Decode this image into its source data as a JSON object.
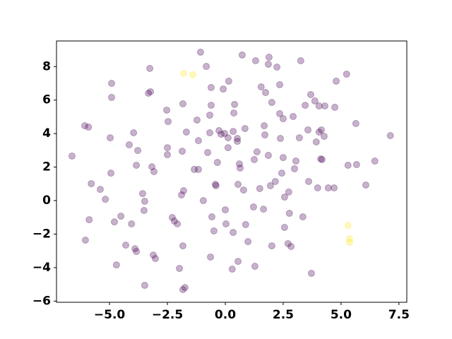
{
  "chart_data": {
    "type": "scatter",
    "alpha": 0.3,
    "xlim": [
      -7.29,
      7.84
    ],
    "ylim": [
      -6.07,
      9.53
    ],
    "xticks": [
      {
        "value": -5,
        "label": "−5.0"
      },
      {
        "value": -2.5,
        "label": "−2.5"
      },
      {
        "value": 0,
        "label": "0.0"
      },
      {
        "value": 2.5,
        "label": "2.5"
      },
      {
        "value": 5,
        "label": "5.0"
      },
      {
        "value": 7.5,
        "label": "7.5"
      }
    ],
    "yticks": [
      {
        "value": -6,
        "label": "−6"
      },
      {
        "value": -4,
        "label": "−4"
      },
      {
        "value": -2,
        "label": "−2"
      },
      0,
      2,
      4,
      6,
      8
    ],
    "series": [
      {
        "color": "#440154",
        "x": [
          -6.62,
          -6.07,
          -5.91,
          -5.79,
          -6.04,
          -5.88,
          -5.4,
          -5.18,
          -4.91,
          -4.91,
          -4.97,
          -4.94,
          -4.79,
          -4.7,
          -4.51,
          -4.3,
          -4.15,
          -4.05,
          -3.96,
          -3.78,
          -3.84,
          -3.9,
          -3.84,
          -3.57,
          -3.48,
          -3.51,
          -3.48,
          -3.32,
          -3.23,
          -3.26,
          -3.17,
          -3.08,
          -3.11,
          -3.02,
          -2.53,
          -2.47,
          -2.5,
          -2.5,
          -2.29,
          -2.2,
          -2.07,
          -1.98,
          -1.86,
          -1.83,
          -1.83,
          -1.83,
          -1.74,
          -1.8,
          -1.89,
          -1.68,
          -1.34,
          -1.16,
          -1.22,
          -1.16,
          -1.07,
          -0.95,
          -0.82,
          -0.76,
          -0.67,
          -0.67,
          -0.61,
          -0.61,
          -0.58,
          -0.49,
          -0.64,
          -0.43,
          -0.4,
          -0.34,
          -0.27,
          -0.18,
          -0.09,
          -0.03,
          0.0,
          0.03,
          0.12,
          0.12,
          0.15,
          0.34,
          0.37,
          0.34,
          0.3,
          0.4,
          0.52,
          0.52,
          0.55,
          0.55,
          0.61,
          0.64,
          0.73,
          0.79,
          0.85,
          0.88,
          0.98,
          1.25,
          1.22,
          1.31,
          1.28,
          1.37,
          1.49,
          1.55,
          1.65,
          1.68,
          1.71,
          1.74,
          1.86,
          1.86,
          1.89,
          1.95,
          2.01,
          2.01,
          2.16,
          2.23,
          2.35,
          2.38,
          2.35,
          2.44,
          2.5,
          2.56,
          2.56,
          2.74,
          2.77,
          2.71,
          2.84,
          2.5,
          2.93,
          2.99,
          3.05,
          3.26,
          3.2,
          3.35,
          3.45,
          3.57,
          3.6,
          3.69,
          3.72,
          3.87,
          3.93,
          3.99,
          4.05,
          4.05,
          4.15,
          4.27,
          4.12,
          4.18,
          4.3,
          4.45,
          4.7,
          4.73,
          4.79,
          5.24,
          5.3,
          5.67,
          5.64,
          6.07,
          6.46,
          7.13
        ],
        "y": [
          2.66,
          4.47,
          4.39,
          1.01,
          -2.36,
          -1.14,
          0.67,
          0.08,
          7.0,
          6.16,
          3.75,
          1.64,
          -1.27,
          -3.84,
          -0.93,
          -2.66,
          3.33,
          -1.39,
          4.05,
          2.99,
          2.11,
          -2.87,
          -3.04,
          0.42,
          -0.04,
          -0.59,
          -5.06,
          6.41,
          6.5,
          7.89,
          2.02,
          1.73,
          -3.25,
          -3.46,
          5.4,
          4.72,
          3.16,
          2.74,
          -1.01,
          -1.22,
          -1.39,
          -4.05,
          2.95,
          5.78,
          -2.7,
          -5.31,
          -5.19,
          0.59,
          0.34,
          4.09,
          1.86,
          1.86,
          4.81,
          3.58,
          8.86,
          0.0,
          8.01,
          2.87,
          4.05,
          5.1,
          5.69,
          6.75,
          -0.97,
          -1.81,
          -3.37,
          0.97,
          0.89,
          2.28,
          4.18,
          3.96,
          6.66,
          4.01,
          -0.55,
          -1.39,
          3.75,
          3.16,
          7.13,
          4.13,
          5.23,
          -1.9,
          -4.09,
          5.74,
          3.71,
          3.54,
          -3.63,
          0.97,
          2.19,
          1.94,
          8.69,
          0.63,
          4.3,
          -1.43,
          -2.45,
          2.45,
          -0.38,
          8.35,
          -3.92,
          2.91,
          0.72,
          6.79,
          -0.51,
          4.47,
          3.92,
          6.45,
          2.7,
          8.14,
          8.56,
          0.89,
          -2.7,
          5.86,
          1.14,
          7.97,
          5.19,
          3.71,
          6.92,
          1.64,
          2.57,
          0.21,
          -1.6,
          0.51,
          -0.76,
          -2.57,
          -2.74,
          4.89,
          5.02,
          1.9,
          2.36,
          8.35,
          3.75,
          -0.97,
          5.69,
          4.22,
          1.14,
          6.33,
          -4.34,
          5.95,
          3.5,
          0.76,
          5.65,
          4.09,
          4.22,
          3.84,
          2.49,
          2.45,
          5.65,
          0.76,
          0.76,
          5.57,
          7.13,
          7.55,
          2.11,
          2.15,
          4.6,
          0.93,
          2.36,
          3.88
        ]
      },
      {
        "color": "#fde725",
        "x": [
          -1.8,
          -1.4,
          5.3,
          5.37,
          5.37
        ],
        "y": [
          7.59,
          7.51,
          -1.48,
          -2.28,
          -2.49
        ]
      }
    ]
  }
}
